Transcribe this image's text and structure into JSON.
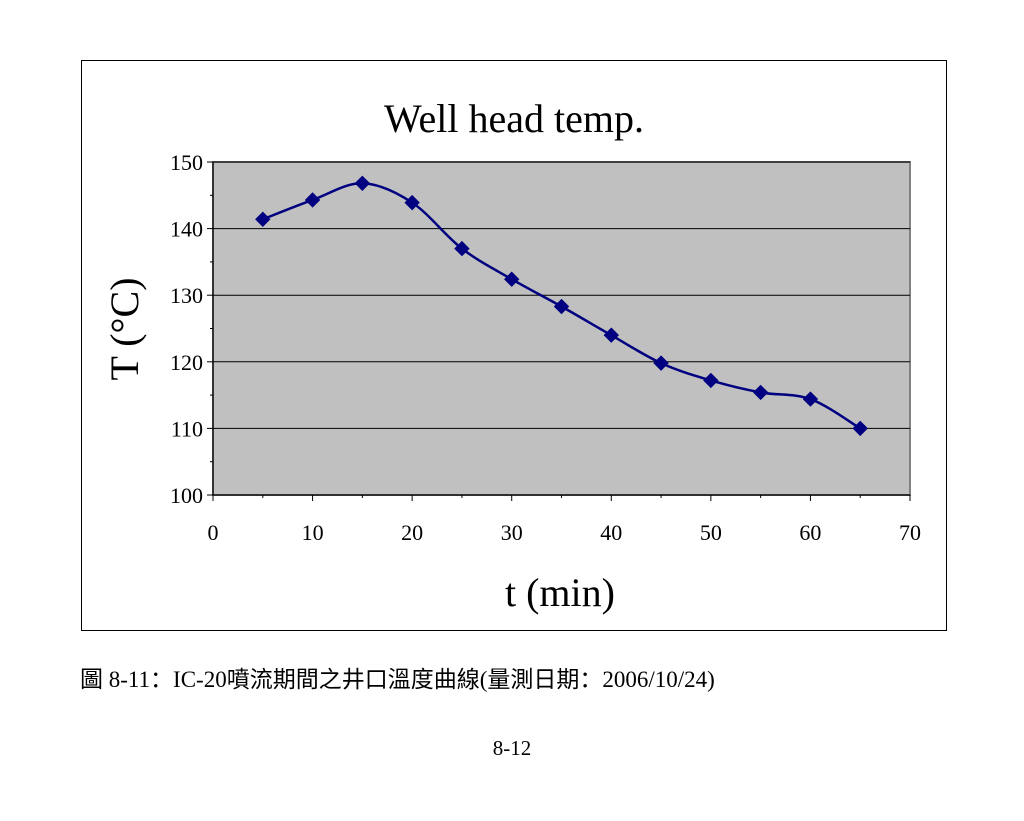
{
  "chart_data": {
    "type": "line",
    "title": "Well head temp.",
    "xlabel": "t (min)",
    "ylabel": "T (°C)",
    "xlim": [
      0,
      70
    ],
    "ylim": [
      100,
      150
    ],
    "x_ticks": [
      0,
      10,
      20,
      30,
      40,
      50,
      60,
      70
    ],
    "y_ticks": [
      100,
      110,
      120,
      130,
      140,
      150
    ],
    "grid": "horizontal",
    "legend": "none",
    "plot_background": "#c0c0c0",
    "series": [
      {
        "color": "#000080",
        "marker": "diamond",
        "smooth": true,
        "x": [
          5,
          10,
          15,
          20,
          25,
          30,
          35,
          40,
          45,
          50,
          55,
          60,
          65
        ],
        "y": [
          141.4,
          144.3,
          146.8,
          143.9,
          137.0,
          132.4,
          128.3,
          124.0,
          119.8,
          117.2,
          115.4,
          114.4,
          110.0
        ]
      }
    ]
  },
  "caption": "圖 8-11：IC-20噴流期間之井口溫度曲線(量測日期：2006/10/24)",
  "page_number": "8-12"
}
